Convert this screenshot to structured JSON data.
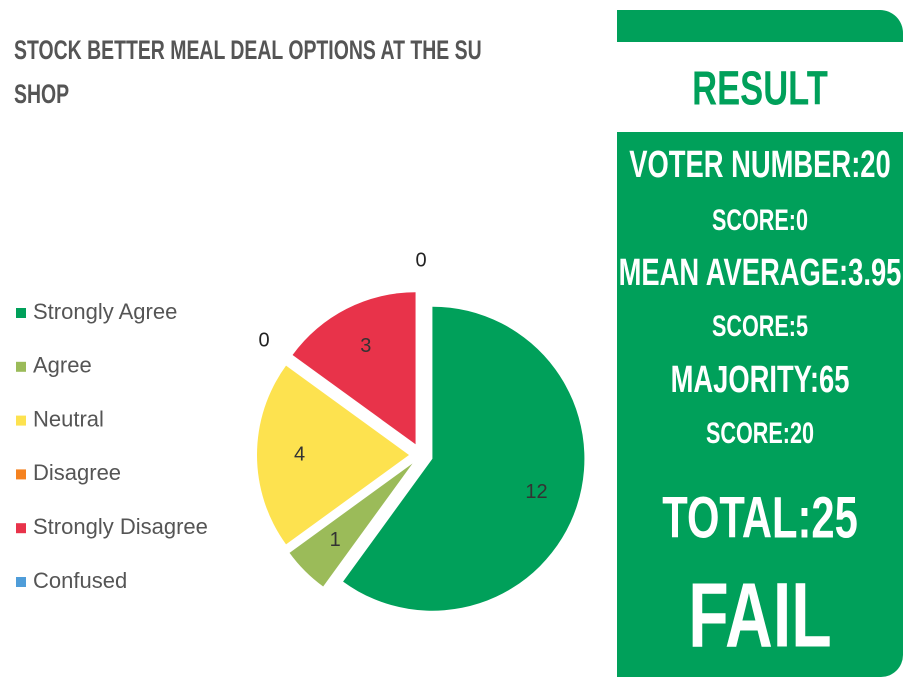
{
  "chart_data": {
    "type": "pie",
    "title": "STOCK BETTER MEAL DEAL OPTIONS AT THE SU SHOP",
    "categories": [
      "Strongly Agree",
      "Agree",
      "Neutral",
      "Disagree",
      "Strongly Disagree",
      "Confused"
    ],
    "values": [
      12,
      1,
      4,
      0,
      3,
      0
    ],
    "colors": [
      "#00a05a",
      "#9bbb59",
      "#fde24f",
      "#f58220",
      "#e8334a",
      "#4f9dd9"
    ],
    "legend": "left"
  },
  "result_panel": {
    "heading": "RESULT",
    "lines": [
      "VOTER NUMBER:20",
      "SCORE:0",
      "MEAN AVERAGE:3.95",
      "SCORE:5",
      "MAJORITY:65",
      "SCORE:20"
    ],
    "total": "TOTAL:25",
    "verdict": "FAIL"
  }
}
